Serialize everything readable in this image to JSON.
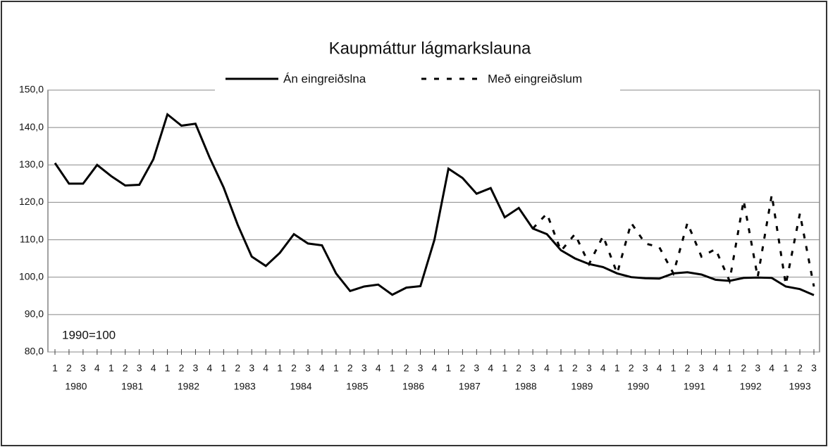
{
  "chart_data": {
    "type": "line",
    "title": "Kaupmáttur lágmarkslauna",
    "annotation": "1990=100",
    "categories": [
      "1",
      "2",
      "3",
      "4",
      "1",
      "2",
      "3",
      "4",
      "1",
      "2",
      "3",
      "4",
      "1",
      "2",
      "3",
      "4",
      "1",
      "2",
      "3",
      "4",
      "1",
      "2",
      "3",
      "4",
      "1",
      "2",
      "3",
      "4",
      "1",
      "2",
      "3",
      "4",
      "1",
      "2",
      "3",
      "4",
      "1",
      "2",
      "3",
      "4",
      "1",
      "2",
      "3",
      "4",
      "1",
      "2",
      "3",
      "4",
      "1",
      "2",
      "3",
      "4",
      "1",
      "2",
      "3"
    ],
    "years": [
      "1980",
      "1981",
      "1982",
      "1983",
      "1984",
      "1985",
      "1986",
      "1987",
      "1988",
      "1989",
      "1990",
      "1991",
      "1992",
      "1993"
    ],
    "series": [
      {
        "name": "Án eingreiðslna",
        "color": "#000000",
        "dash": "solid",
        "values": [
          130.5,
          125,
          125,
          130,
          127,
          124.5,
          124.7,
          131.5,
          143.5,
          140.5,
          141,
          132,
          124,
          114,
          105.5,
          103,
          106.5,
          111.5,
          109,
          108.5,
          101,
          96.3,
          97.5,
          98,
          95.3,
          97.2,
          97.6,
          110,
          129,
          126.5,
          122.3,
          123.8,
          116,
          118.5,
          113,
          111.5,
          107.2,
          105,
          103.5,
          102.7,
          101,
          100,
          99.7,
          99.6,
          101,
          101.3,
          100.7,
          99.3,
          99,
          99.8,
          99.9,
          99.8,
          97.5,
          96.8,
          95.2
        ]
      },
      {
        "name": "Með eingreiðslum",
        "color": "#000000",
        "dash": "dotted",
        "values": [
          null,
          null,
          null,
          null,
          null,
          null,
          null,
          null,
          null,
          null,
          null,
          null,
          null,
          null,
          null,
          null,
          null,
          null,
          null,
          null,
          null,
          null,
          null,
          null,
          null,
          null,
          null,
          null,
          null,
          null,
          null,
          null,
          null,
          null,
          113,
          117,
          107,
          111.5,
          103.5,
          111,
          101,
          114.5,
          109,
          108,
          101,
          114.5,
          105.5,
          107.5,
          99,
          120.5,
          100,
          122,
          98,
          117,
          97.5
        ]
      }
    ],
    "ylim": [
      80,
      150
    ],
    "yticks": [
      {
        "value": 80,
        "label": "80,0"
      },
      {
        "value": 90,
        "label": "90,0"
      },
      {
        "value": 100,
        "label": "100,0"
      },
      {
        "value": 110,
        "label": "110,0"
      },
      {
        "value": 120,
        "label": "120,0"
      },
      {
        "value": 130,
        "label": "130,0"
      },
      {
        "value": 140,
        "label": "140,0"
      },
      {
        "value": 150,
        "label": "150,0"
      }
    ],
    "grid": true
  }
}
